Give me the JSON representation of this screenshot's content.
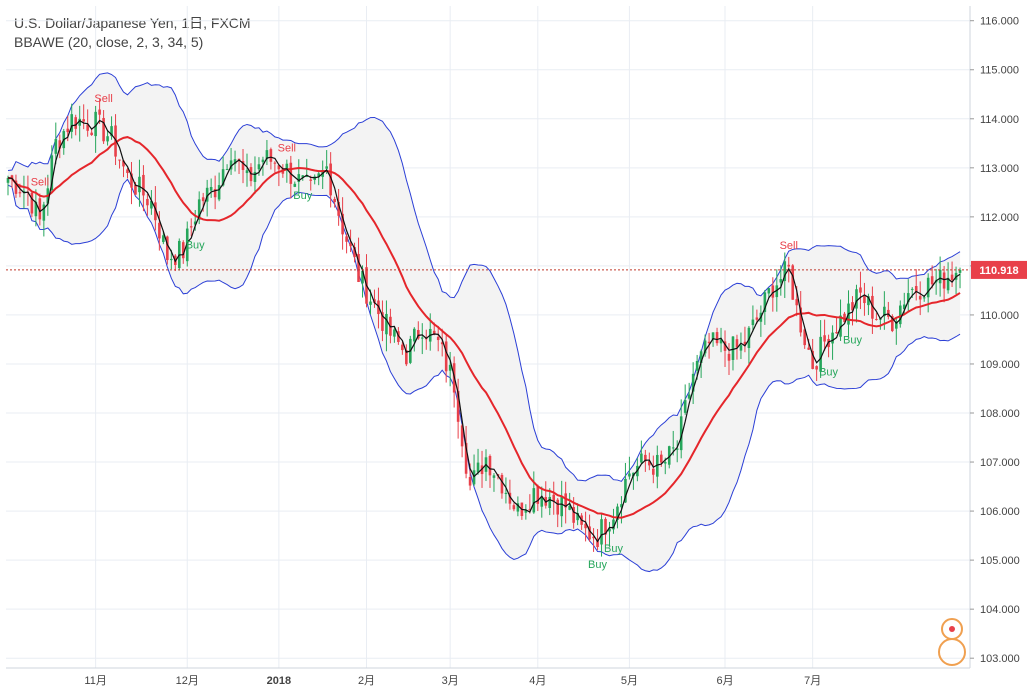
{
  "header": {
    "symbol_line": "U.S. Dollar/Japanese Yen, 1日, FXCM",
    "indicator_line": "BBAWE (20, close, 2, 3, 34, 5)"
  },
  "colors": {
    "up": "#26a65b",
    "down": "#e8404a",
    "band": "#2b3fd6",
    "basis": "#e5262b",
    "fast_ma": "#111111",
    "price_line": "#c0392b",
    "band_fill": "#f3f3f3",
    "grid": "#e9edf3"
  },
  "chart_data": {
    "type": "candlestick",
    "y_axis": {
      "ticks": [
        "103.000",
        "104.000",
        "105.000",
        "106.000",
        "107.000",
        "108.000",
        "109.000",
        "110.000",
        "111.000",
        "112.000",
        "113.000",
        "114.000",
        "115.000",
        "116.000"
      ],
      "range": [
        102.8,
        116.3
      ]
    },
    "x_axis": {
      "ticks": [
        "11月",
        "12月",
        "2018",
        "2月",
        "3月",
        "4月",
        "5月",
        "6月",
        "7月"
      ]
    },
    "current_price": "110.918",
    "signals": [
      {
        "label": "Sell",
        "i": 8,
        "type": "sell"
      },
      {
        "label": "Sell",
        "i": 24,
        "type": "sell"
      },
      {
        "label": "Buy",
        "i": 47,
        "type": "buy"
      },
      {
        "label": "Sell",
        "i": 70,
        "type": "sell"
      },
      {
        "label": "Buy",
        "i": 74,
        "type": "buy"
      },
      {
        "label": "Buy",
        "i": 148,
        "type": "buy"
      },
      {
        "label": "Buy",
        "i": 152,
        "type": "buy"
      },
      {
        "label": "Sell",
        "i": 196,
        "type": "sell"
      },
      {
        "label": "Buy",
        "i": 206,
        "type": "buy"
      },
      {
        "label": "Buy",
        "i": 212,
        "type": "buy"
      }
    ],
    "anchors": [
      [
        0,
        112.8
      ],
      [
        5,
        112.5
      ],
      [
        8,
        111.9
      ],
      [
        12,
        113.5
      ],
      [
        16,
        114.0
      ],
      [
        22,
        113.9
      ],
      [
        26,
        113.6
      ],
      [
        30,
        112.8
      ],
      [
        36,
        112.3
      ],
      [
        40,
        111.2
      ],
      [
        44,
        111.3
      ],
      [
        48,
        112.3
      ],
      [
        52,
        112.6
      ],
      [
        56,
        113.4
      ],
      [
        60,
        112.7
      ],
      [
        64,
        113.2
      ],
      [
        68,
        113.1
      ],
      [
        72,
        112.8
      ],
      [
        76,
        112.5
      ],
      [
        80,
        113.0
      ],
      [
        84,
        111.8
      ],
      [
        88,
        110.8
      ],
      [
        92,
        110.2
      ],
      [
        96,
        109.6
      ],
      [
        100,
        109.2
      ],
      [
        104,
        109.8
      ],
      [
        108,
        109.4
      ],
      [
        112,
        108.6
      ],
      [
        116,
        106.5
      ],
      [
        120,
        107.1
      ],
      [
        124,
        106.6
      ],
      [
        128,
        106.0
      ],
      [
        132,
        106.4
      ],
      [
        136,
        106.3
      ],
      [
        140,
        106.1
      ],
      [
        144,
        105.6
      ],
      [
        148,
        105.5
      ],
      [
        152,
        106.0
      ],
      [
        156,
        106.8
      ],
      [
        160,
        107.0
      ],
      [
        164,
        106.9
      ],
      [
        168,
        107.3
      ],
      [
        172,
        108.8
      ],
      [
        176,
        109.4
      ],
      [
        180,
        109.3
      ],
      [
        184,
        109.3
      ],
      [
        188,
        109.9
      ],
      [
        192,
        110.6
      ],
      [
        196,
        110.9
      ],
      [
        198,
        110.1
      ],
      [
        202,
        109.0
      ],
      [
        206,
        109.6
      ],
      [
        210,
        110.0
      ],
      [
        214,
        110.4
      ],
      [
        218,
        110.0
      ],
      [
        222,
        109.9
      ],
      [
        226,
        110.5
      ],
      [
        230,
        110.6
      ],
      [
        234,
        110.7
      ],
      [
        238,
        110.918
      ]
    ]
  }
}
